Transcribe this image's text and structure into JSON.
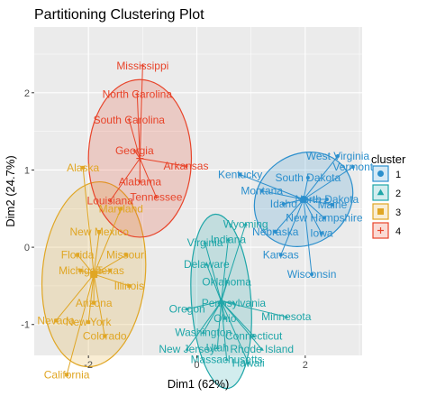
{
  "chart_data": {
    "type": "scatter",
    "title": "Partitioning Clustering Plot",
    "xlabel": "Dim1 (62%)",
    "ylabel": "Dim2 (24.7%)",
    "xlim": [
      -3.0,
      3.05
    ],
    "ylim": [
      -1.4,
      2.85
    ],
    "x_ticks": [
      -2,
      0,
      2
    ],
    "y_ticks": [
      -1,
      0,
      1,
      2
    ],
    "grid": true,
    "legend": {
      "title": "cluster",
      "position": "right",
      "entries": [
        "1",
        "2",
        "3",
        "4"
      ]
    },
    "clusters": [
      {
        "name": "1",
        "color": "#2b8fcd",
        "shape": "circle",
        "center": [
          1.97,
          0.62
        ],
        "ellipse": {
          "rx": 0.95,
          "ry": 0.58,
          "angle_deg": -36
        },
        "points": [
          {
            "label": "West Virginia",
            "x": 2.6,
            "y": 1.18
          },
          {
            "label": "Vermont",
            "x": 2.88,
            "y": 1.04
          },
          {
            "label": "Kentucky",
            "x": 0.8,
            "y": 0.94
          },
          {
            "label": "South Dakota",
            "x": 2.05,
            "y": 0.9
          },
          {
            "label": "Montana",
            "x": 1.2,
            "y": 0.73
          },
          {
            "label": "North Dakota",
            "x": 2.4,
            "y": 0.62
          },
          {
            "label": "Idaho",
            "x": 1.6,
            "y": 0.56
          },
          {
            "label": "Maine",
            "x": 2.5,
            "y": 0.55
          },
          {
            "label": "New Hampshire",
            "x": 2.35,
            "y": 0.38
          },
          {
            "label": "Nebraska",
            "x": 1.45,
            "y": 0.2
          },
          {
            "label": "Iowa",
            "x": 2.3,
            "y": 0.18
          },
          {
            "label": "Kansas",
            "x": 1.55,
            "y": -0.1
          },
          {
            "label": "Wisconsin",
            "x": 2.12,
            "y": -0.35
          }
        ]
      },
      {
        "name": "2",
        "color": "#1fa6a8",
        "shape": "triangle",
        "center": [
          0.45,
          -0.7
        ],
        "ellipse": {
          "rx": 0.55,
          "ry": 1.13,
          "angle_deg": -4
        },
        "points": [
          {
            "label": "Wyoming",
            "x": 0.9,
            "y": 0.3
          },
          {
            "label": "Indiana",
            "x": 0.58,
            "y": 0.1
          },
          {
            "label": "Virginia",
            "x": 0.15,
            "y": 0.06
          },
          {
            "label": "Delaware",
            "x": 0.18,
            "y": -0.22
          },
          {
            "label": "Oklahoma",
            "x": 0.55,
            "y": -0.45
          },
          {
            "label": "Pennsylvania",
            "x": 0.68,
            "y": -0.72
          },
          {
            "label": "Oregon",
            "x": -0.18,
            "y": -0.8
          },
          {
            "label": "Ohio",
            "x": 0.52,
            "y": -0.92
          },
          {
            "label": "Minnesota",
            "x": 1.65,
            "y": -0.9
          },
          {
            "label": "Washington",
            "x": 0.12,
            "y": -1.1
          },
          {
            "label": "Connecticut",
            "x": 1.05,
            "y": -1.15
          },
          {
            "label": "Utah",
            "x": 0.38,
            "y": -1.3
          },
          {
            "label": "New Jersey",
            "x": -0.18,
            "y": -1.32
          },
          {
            "label": "Rhode Island",
            "x": 1.2,
            "y": -1.32
          },
          {
            "label": "Massachusetts",
            "x": 0.55,
            "y": -1.45
          },
          {
            "label": "Hawaii",
            "x": 0.95,
            "y": -1.5
          }
        ]
      },
      {
        "name": "3",
        "color": "#e0a624",
        "shape": "square",
        "center": [
          -1.9,
          -0.35
        ],
        "ellipse": {
          "rx": 0.95,
          "ry": 1.2,
          "angle_deg": 5
        },
        "points": [
          {
            "label": "Alaska",
            "x": -2.1,
            "y": 1.03
          },
          {
            "label": "Maryland",
            "x": -1.4,
            "y": 0.5
          },
          {
            "label": "New Mexico",
            "x": -1.8,
            "y": 0.2
          },
          {
            "label": "Florida",
            "x": -2.2,
            "y": -0.1
          },
          {
            "label": "Missouri",
            "x": -1.3,
            "y": -0.1
          },
          {
            "label": "Texas",
            "x": -1.6,
            "y": -0.3
          },
          {
            "label": "Michigan",
            "x": -2.15,
            "y": -0.3
          },
          {
            "label": "Illinois",
            "x": -1.25,
            "y": -0.5
          },
          {
            "label": "Arizona",
            "x": -1.9,
            "y": -0.72
          },
          {
            "label": "Nevada",
            "x": -2.6,
            "y": -0.95
          },
          {
            "label": "New York",
            "x": -2.0,
            "y": -0.97
          },
          {
            "label": "Colorado",
            "x": -1.7,
            "y": -1.15
          },
          {
            "label": "California",
            "x": -2.4,
            "y": -1.65
          }
        ]
      },
      {
        "name": "4",
        "color": "#e8442a",
        "shape": "cross",
        "center": [
          -1.05,
          1.15
        ],
        "ellipse": {
          "rx": 0.95,
          "ry": 1.02,
          "angle_deg": 0
        },
        "points": [
          {
            "label": "Mississippi",
            "x": -1.0,
            "y": 2.35
          },
          {
            "label": "North Carolina",
            "x": -1.1,
            "y": 1.98
          },
          {
            "label": "South Carolina",
            "x": -1.25,
            "y": 1.65
          },
          {
            "label": "Georgia",
            "x": -1.15,
            "y": 1.25
          },
          {
            "label": "Arkansas",
            "x": -0.2,
            "y": 1.05
          },
          {
            "label": "Alabama",
            "x": -1.05,
            "y": 0.85
          },
          {
            "label": "Louisiana",
            "x": -1.6,
            "y": 0.6
          },
          {
            "label": "Tennessee",
            "x": -0.75,
            "y": 0.65
          }
        ]
      }
    ]
  }
}
